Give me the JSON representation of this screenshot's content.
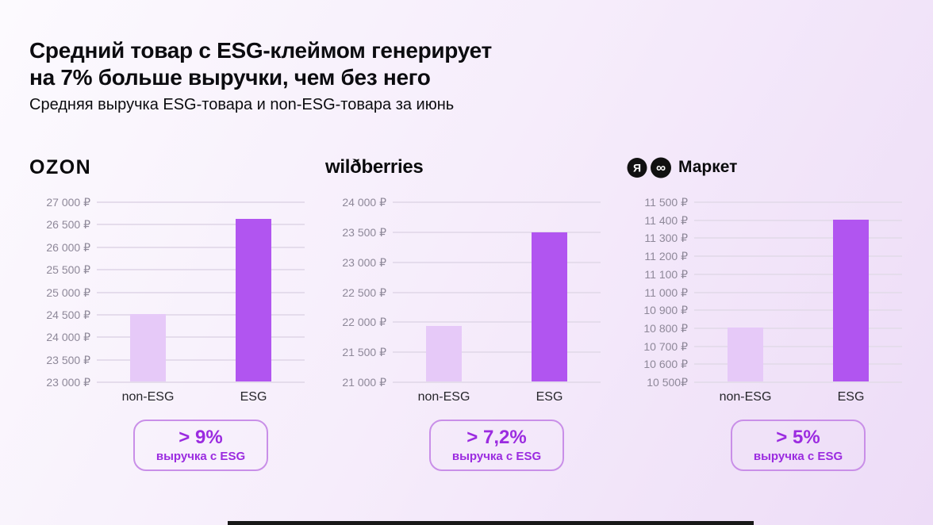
{
  "slide": {
    "title_line1": "Средний товар с ESG-клеймом генерирует",
    "title_line2": "на 7% больше выручки, чем без него",
    "subtitle": "Средняя выручка ESG-товара и non-ESG-товара за июнь"
  },
  "colors": {
    "esg_bar": "#B155F0",
    "non_esg_bar": "#E6C9F8",
    "badge_text": "#9B2BE0",
    "badge_border": "#C98FE8",
    "grid_line": "#E5DCEC",
    "axis_text": "#8E8899",
    "category_text": "#26262B",
    "title_text": "#0C0C10",
    "bottom_bar": "#181818"
  },
  "icons": {
    "market_loop_icon": "∞"
  },
  "chart_data": [
    {
      "type": "bar",
      "marketplace": "Ozon",
      "logo_kind": "ozon",
      "logo_text": "OZON",
      "categories": [
        "non-ESG",
        "ESG"
      ],
      "values": [
        24500,
        26620
      ],
      "series_colors": [
        "non_esg_bar",
        "esg_bar"
      ],
      "ylim": [
        23000,
        27000
      ],
      "y_step": 500,
      "y_tick_labels": [
        "27 000 ₽",
        "26 500 ₽",
        "26 000 ₽",
        "25 500 ₽",
        "25 000 ₽",
        "24 500 ₽",
        "24 000 ₽",
        "23 500 ₽",
        "23 000 ₽"
      ],
      "grid": true,
      "currency": "₽",
      "badge": {
        "headline": "> 9%",
        "caption": "выручка с ESG"
      }
    },
    {
      "type": "bar",
      "marketplace": "Wildberries",
      "logo_kind": "wildberries",
      "logo_text": "wilðberries",
      "categories": [
        "non-ESG",
        "ESG"
      ],
      "values": [
        21920,
        23480
      ],
      "series_colors": [
        "non_esg_bar",
        "esg_bar"
      ],
      "ylim": [
        21000,
        24000
      ],
      "y_step": 500,
      "y_tick_labels": [
        "24 000 ₽",
        "23 500 ₽",
        "23 000 ₽",
        "22 500 ₽",
        "22 000 ₽",
        "21 500 ₽",
        "21 000 ₽"
      ],
      "grid": true,
      "currency": "₽",
      "badge": {
        "headline": "> 7,2%",
        "caption": "выручка с ESG"
      }
    },
    {
      "type": "bar",
      "marketplace": "Яндекс Маркет",
      "logo_kind": "yandex-market",
      "logo_text": "Маркет",
      "logo_icon_letter": "Я",
      "categories": [
        "non-ESG",
        "ESG"
      ],
      "values": [
        10800,
        11400
      ],
      "series_colors": [
        "non_esg_bar",
        "esg_bar"
      ],
      "ylim": [
        10500,
        11500
      ],
      "y_step": 100,
      "y_tick_labels": [
        "11 500 ₽",
        "11 400 ₽",
        "11 300 ₽",
        "11 200 ₽",
        "11 100 ₽",
        "11 000 ₽",
        "10 900 ₽",
        "10 800 ₽",
        "10 700 ₽",
        "10 600 ₽",
        "10 500₽"
      ],
      "grid": true,
      "currency": "₽",
      "badge": {
        "headline": "> 5%",
        "caption": "выручка с ESG"
      }
    }
  ]
}
